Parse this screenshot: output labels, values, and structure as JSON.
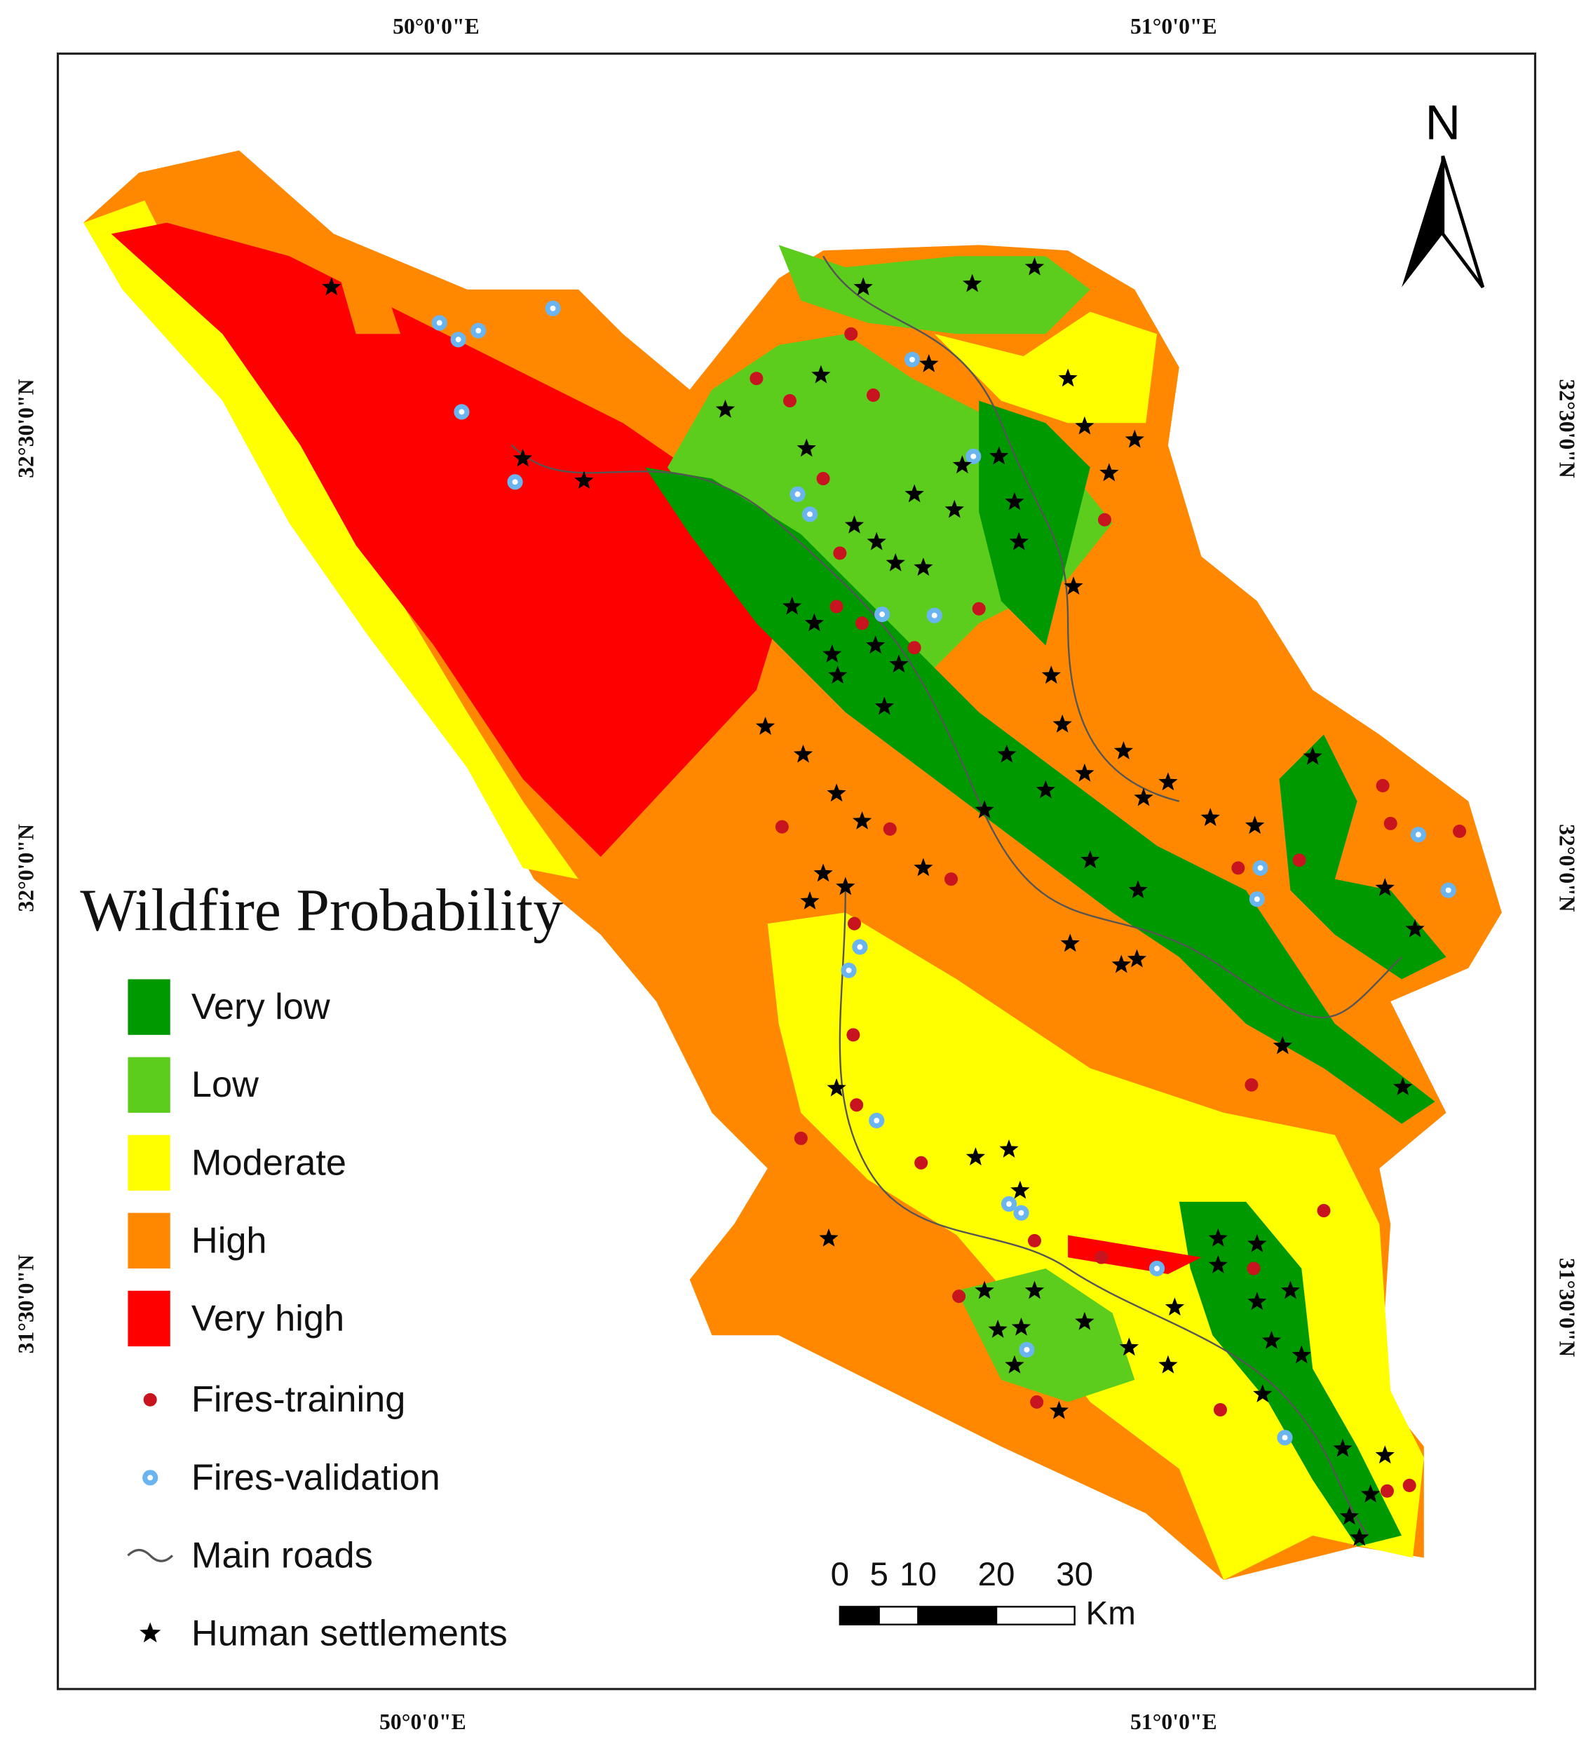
{
  "title": "Wildfire Probability",
  "north": "N",
  "coordinates": {
    "top": [
      "50°0'0\"E",
      "51°0'0\"E"
    ],
    "bottom": [
      "50°0'0\"E",
      "51°0'0\"E"
    ],
    "left": [
      "32°30'0\"N",
      "32°0'0\"N",
      "31°30'0\"N"
    ],
    "right": [
      "32°30'0\"N",
      "32°0'0\"N",
      "31°30'0\"N"
    ]
  },
  "legend": {
    "classes": [
      {
        "label": "Very low",
        "color": "#009a00"
      },
      {
        "label": "Low",
        "color": "#5ccd1c"
      },
      {
        "label": "Moderate",
        "color": "#ffff00"
      },
      {
        "label": "High",
        "color": "#ff8800"
      },
      {
        "label": "Very high",
        "color": "#ff0000"
      }
    ],
    "features": [
      {
        "label": "Fires-training",
        "color": "#c8141e"
      },
      {
        "label": "Fires-validation",
        "color": "#6ab4f0"
      },
      {
        "label": "Main roads",
        "color": "#555555"
      },
      {
        "label": "Human settlements",
        "color": "#000000"
      }
    ]
  },
  "scale_bar": {
    "ticks": [
      0,
      5,
      10,
      20,
      30
    ],
    "unit": "Km"
  }
}
